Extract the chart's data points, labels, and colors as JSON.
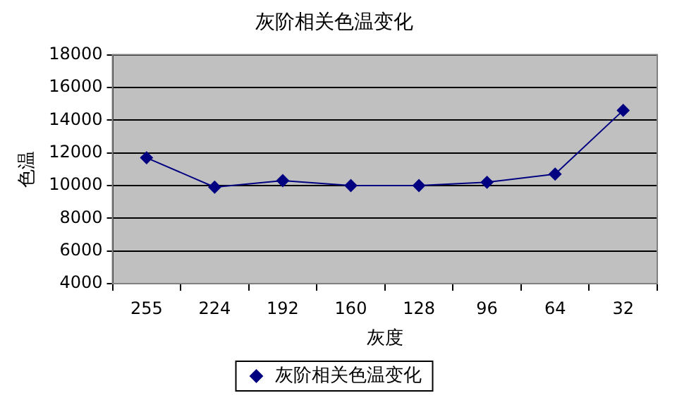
{
  "chart_data": {
    "type": "line",
    "title": "灰阶相关色温变化",
    "xlabel": "灰度",
    "ylabel": "色温",
    "categories": [
      "255",
      "224",
      "192",
      "160",
      "128",
      "96",
      "64",
      "32"
    ],
    "series": [
      {
        "name": "灰阶相关色温变化",
        "color": "#000080",
        "values": [
          11700,
          9900,
          10300,
          10000,
          10000,
          10200,
          10700,
          14600
        ]
      }
    ],
    "ylim": [
      4000,
      18000
    ],
    "yticks": [
      4000,
      6000,
      8000,
      10000,
      12000,
      14000,
      16000,
      18000
    ],
    "grid": "y",
    "legend": "bottom",
    "marker": "diamond",
    "line_style": "solid"
  }
}
